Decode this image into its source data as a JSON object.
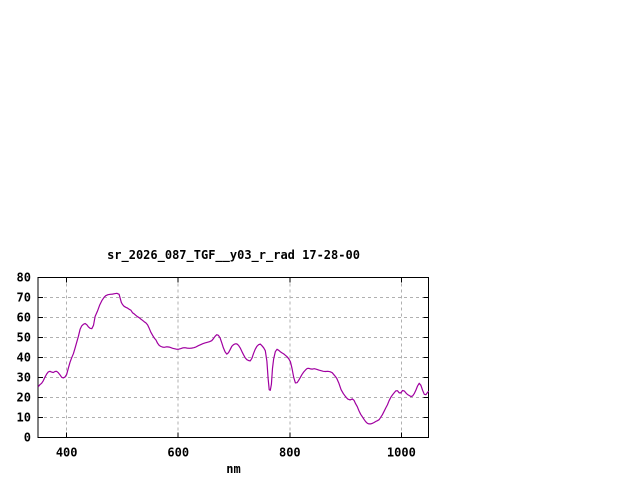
{
  "window": {
    "background": "#FFFFFF"
  },
  "colors": {
    "line": "#A000A0",
    "grid": "#B0B0B0",
    "border": "#000000",
    "text": "#000000",
    "background": "#FFFFFF"
  },
  "chart_data": {
    "type": "line",
    "title": "sr_2026_087_TGF__y03_r_rad 17-28-00",
    "xlabel": "nm",
    "ylabel": "",
    "xlim": [
      348.6,
      1048.6
    ],
    "ylim": [
      0,
      80
    ],
    "xticks": [
      400,
      600,
      800,
      1000
    ],
    "yticks": [
      0,
      10,
      20,
      30,
      40,
      50,
      60,
      70,
      80
    ],
    "grid": "dashed",
    "legend_position": "none",
    "series": [
      {
        "name": "sr_2026_087_TGF__y03_r_rad",
        "color": "#A000A0",
        "points": [
          [
            349,
            25.3
          ],
          [
            352,
            26.3
          ],
          [
            355,
            27.0
          ],
          [
            358,
            28.2
          ],
          [
            361,
            30.0
          ],
          [
            364,
            31.6
          ],
          [
            367,
            32.7
          ],
          [
            370,
            33.0
          ],
          [
            373,
            32.6
          ],
          [
            376,
            32.4
          ],
          [
            379,
            32.9
          ],
          [
            382,
            33.0
          ],
          [
            385,
            32.3
          ],
          [
            388,
            31.2
          ],
          [
            391,
            30.0
          ],
          [
            394,
            29.7
          ],
          [
            397,
            30.1
          ],
          [
            400,
            31.5
          ],
          [
            403,
            34.5
          ],
          [
            406,
            37.5
          ],
          [
            409,
            39.8
          ],
          [
            412,
            41.8
          ],
          [
            415,
            44.5
          ],
          [
            418,
            47.5
          ],
          [
            421,
            50.5
          ],
          [
            424,
            54.0
          ],
          [
            427,
            55.7
          ],
          [
            430,
            56.5
          ],
          [
            433,
            56.9
          ],
          [
            436,
            56.3
          ],
          [
            439,
            55.2
          ],
          [
            442,
            54.5
          ],
          [
            445,
            54.3
          ],
          [
            448,
            56.0
          ],
          [
            451,
            60.4
          ],
          [
            455,
            63.0
          ],
          [
            459,
            66.0
          ],
          [
            463,
            68.3
          ],
          [
            467,
            70.0
          ],
          [
            470,
            70.8
          ],
          [
            474,
            71.3
          ],
          [
            478,
            71.5
          ],
          [
            482,
            71.6
          ],
          [
            486,
            71.8
          ],
          [
            490,
            72.0
          ],
          [
            494,
            71.5
          ],
          [
            496,
            69.5
          ],
          [
            498,
            67.5
          ],
          [
            500,
            66.4
          ],
          [
            503,
            65.5
          ],
          [
            506,
            65.0
          ],
          [
            509,
            64.6
          ],
          [
            512,
            64.0
          ],
          [
            515,
            63.6
          ],
          [
            518,
            62.3
          ],
          [
            521,
            61.7
          ],
          [
            524,
            61.0
          ],
          [
            527,
            60.3
          ],
          [
            530,
            59.8
          ],
          [
            533,
            59.1
          ],
          [
            536,
            58.5
          ],
          [
            539,
            57.8
          ],
          [
            542,
            57.2
          ],
          [
            545,
            56.2
          ],
          [
            548,
            54.5
          ],
          [
            551,
            52.5
          ],
          [
            554,
            51.0
          ],
          [
            557,
            49.6
          ],
          [
            560,
            48.7
          ],
          [
            563,
            47.0
          ],
          [
            566,
            45.9
          ],
          [
            569,
            45.4
          ],
          [
            572,
            45.1
          ],
          [
            575,
            45.0
          ],
          [
            578,
            45.2
          ],
          [
            581,
            45.2
          ],
          [
            584,
            45.1
          ],
          [
            587,
            44.8
          ],
          [
            590,
            44.5
          ],
          [
            593,
            44.3
          ],
          [
            596,
            44.1
          ],
          [
            600,
            44.0
          ],
          [
            604,
            44.3
          ],
          [
            608,
            44.7
          ],
          [
            612,
            44.8
          ],
          [
            616,
            44.6
          ],
          [
            620,
            44.5
          ],
          [
            624,
            44.6
          ],
          [
            628,
            44.8
          ],
          [
            632,
            45.2
          ],
          [
            636,
            45.8
          ],
          [
            640,
            46.3
          ],
          [
            644,
            46.8
          ],
          [
            648,
            47.2
          ],
          [
            652,
            47.5
          ],
          [
            656,
            47.8
          ],
          [
            660,
            48.3
          ],
          [
            663,
            49.3
          ],
          [
            666,
            50.5
          ],
          [
            669,
            51.3
          ],
          [
            672,
            51.0
          ],
          [
            675,
            49.7
          ],
          [
            678,
            47.2
          ],
          [
            681,
            44.7
          ],
          [
            684,
            42.7
          ],
          [
            687,
            41.6
          ],
          [
            690,
            42.3
          ],
          [
            693,
            43.8
          ],
          [
            696,
            45.5
          ],
          [
            699,
            46.3
          ],
          [
            702,
            46.7
          ],
          [
            705,
            46.7
          ],
          [
            708,
            46.0
          ],
          [
            711,
            44.7
          ],
          [
            714,
            43.0
          ],
          [
            717,
            41.3
          ],
          [
            720,
            39.7
          ],
          [
            723,
            38.8
          ],
          [
            726,
            38.4
          ],
          [
            729,
            38.2
          ],
          [
            732,
            39.5
          ],
          [
            735,
            42.0
          ],
          [
            738,
            44.0
          ],
          [
            741,
            45.5
          ],
          [
            744,
            46.3
          ],
          [
            747,
            46.6
          ],
          [
            750,
            45.8
          ],
          [
            753,
            44.8
          ],
          [
            756,
            43.3
          ],
          [
            759,
            38.0
          ],
          [
            761,
            29.5
          ],
          [
            763,
            23.8
          ],
          [
            765,
            23.5
          ],
          [
            767,
            26.5
          ],
          [
            769,
            34.5
          ],
          [
            771,
            39.0
          ],
          [
            774,
            42.8
          ],
          [
            777,
            44.0
          ],
          [
            780,
            43.5
          ],
          [
            783,
            42.8
          ],
          [
            786,
            42.2
          ],
          [
            789,
            41.7
          ],
          [
            792,
            41.0
          ],
          [
            795,
            40.3
          ],
          [
            798,
            39.3
          ],
          [
            801,
            37.8
          ],
          [
            804,
            34.5
          ],
          [
            807,
            30.0
          ],
          [
            810,
            27.2
          ],
          [
            813,
            27.3
          ],
          [
            816,
            28.5
          ],
          [
            819,
            30.0
          ],
          [
            822,
            31.5
          ],
          [
            825,
            32.7
          ],
          [
            828,
            33.6
          ],
          [
            831,
            34.4
          ],
          [
            834,
            34.5
          ],
          [
            837,
            34.2
          ],
          [
            840,
            34.1
          ],
          [
            844,
            34.3
          ],
          [
            848,
            34.0
          ],
          [
            852,
            33.6
          ],
          [
            856,
            33.3
          ],
          [
            860,
            33.0
          ],
          [
            864,
            32.9
          ],
          [
            868,
            33.0
          ],
          [
            872,
            32.8
          ],
          [
            876,
            32.3
          ],
          [
            880,
            31.0
          ],
          [
            884,
            29.5
          ],
          [
            888,
            27.0
          ],
          [
            892,
            23.8
          ],
          [
            896,
            21.8
          ],
          [
            900,
            20.3
          ],
          [
            904,
            19.1
          ],
          [
            908,
            18.7
          ],
          [
            912,
            19.2
          ],
          [
            915,
            18.5
          ],
          [
            918,
            16.8
          ],
          [
            921,
            15.3
          ],
          [
            924,
            13.2
          ],
          [
            927,
            11.5
          ],
          [
            930,
            10.3
          ],
          [
            933,
            9.0
          ],
          [
            936,
            7.8
          ],
          [
            939,
            7.0
          ],
          [
            942,
            6.7
          ],
          [
            945,
            6.7
          ],
          [
            948,
            7.0
          ],
          [
            951,
            7.4
          ],
          [
            954,
            7.9
          ],
          [
            957,
            8.3
          ],
          [
            960,
            8.8
          ],
          [
            963,
            10.0
          ],
          [
            966,
            11.3
          ],
          [
            969,
            13.0
          ],
          [
            972,
            14.7
          ],
          [
            975,
            16.2
          ],
          [
            978,
            18.3
          ],
          [
            981,
            20.0
          ],
          [
            984,
            21.2
          ],
          [
            987,
            22.2
          ],
          [
            990,
            23.2
          ],
          [
            993,
            23.3
          ],
          [
            996,
            22.2
          ],
          [
            999,
            22.2
          ],
          [
            1002,
            23.4
          ],
          [
            1005,
            23.2
          ],
          [
            1008,
            22.2
          ],
          [
            1011,
            21.4
          ],
          [
            1014,
            20.9
          ],
          [
            1017,
            20.4
          ],
          [
            1020,
            20.6
          ],
          [
            1023,
            21.8
          ],
          [
            1026,
            23.6
          ],
          [
            1029,
            25.7
          ],
          [
            1032,
            27.0
          ],
          [
            1035,
            26.0
          ],
          [
            1038,
            23.5
          ],
          [
            1041,
            21.5
          ],
          [
            1044,
            21.3
          ],
          [
            1047,
            22.5
          ],
          [
            1049,
            23.0
          ]
        ]
      }
    ]
  }
}
